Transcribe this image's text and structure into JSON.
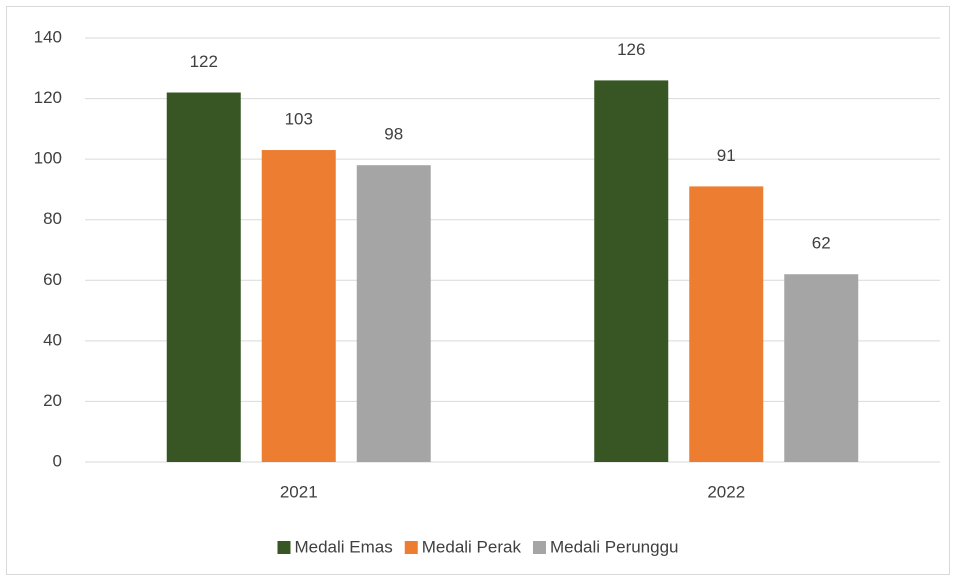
{
  "chart_data": {
    "type": "bar",
    "categories": [
      "2021",
      "2022"
    ],
    "series": [
      {
        "name": "Medali Emas",
        "color": "#375623",
        "values": [
          122,
          126
        ]
      },
      {
        "name": "Medali Perak",
        "color": "#ed7d31",
        "values": [
          103,
          91
        ]
      },
      {
        "name": "Medali Perunggu",
        "color": "#a5a5a5",
        "values": [
          98,
          62
        ]
      }
    ],
    "ylim": [
      0,
      140
    ],
    "yticks": [
      0,
      20,
      40,
      60,
      80,
      100,
      120,
      140
    ],
    "grid": true,
    "legend": "bottom"
  }
}
